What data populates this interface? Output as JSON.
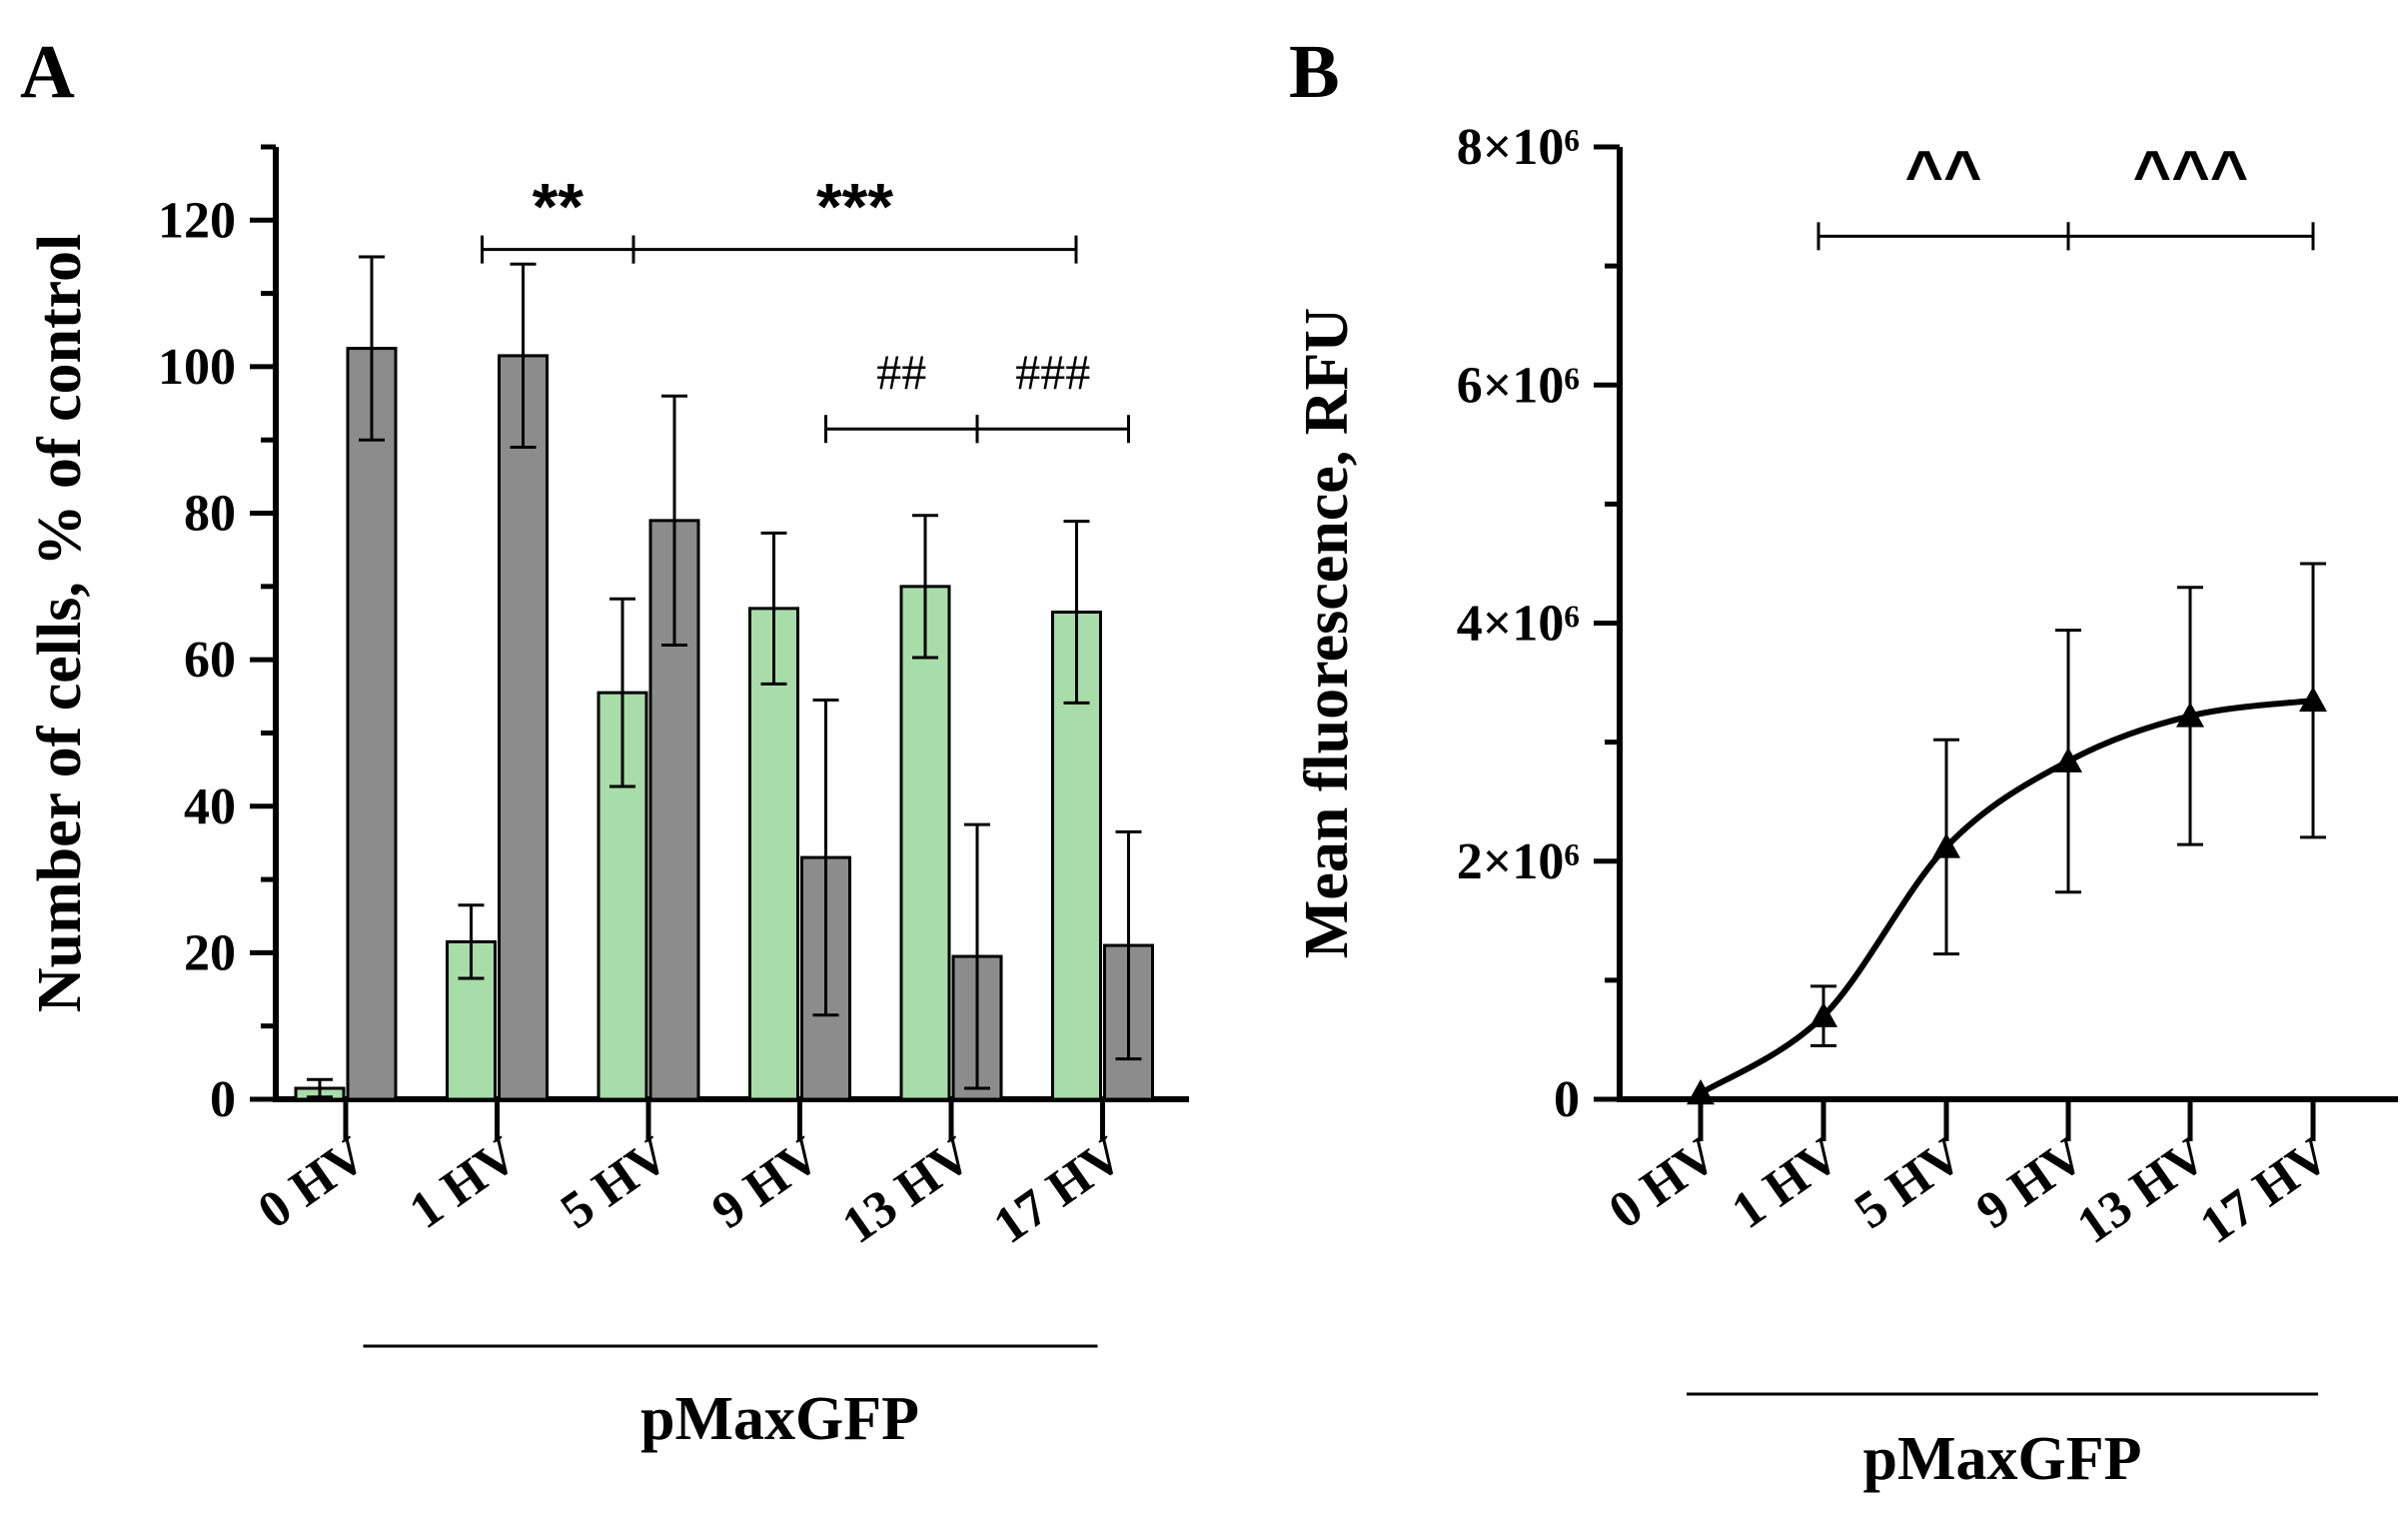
{
  "chart_data": [
    {
      "panel": "A",
      "type": "bar",
      "ylabel": "Number of cells, % of control",
      "ylim": [
        0,
        130
      ],
      "yticks": [
        0,
        20,
        40,
        60,
        80,
        100,
        120
      ],
      "categories": [
        "0 HV",
        "1 HV",
        "5 HV",
        "9 HV",
        "13 HV",
        "17 HV"
      ],
      "group_label": "pMaxGFP",
      "series": [
        {
          "color": "#a8dca8",
          "values": [
            1.5,
            21.5,
            55.5,
            67,
            70,
            66.5
          ],
          "errors": [
            1.2,
            5,
            12.8,
            10.3,
            9.7,
            12.4
          ]
        },
        {
          "color": "#8c8c8c",
          "values": [
            102.5,
            101.5,
            79,
            33,
            19.5,
            21
          ],
          "errors": [
            12.5,
            12.5,
            17,
            21.5,
            18,
            15.5
          ]
        }
      ],
      "annotations": [
        {
          "text": "**",
          "from": "1 HV",
          "to": "5 HV",
          "y": 116
        },
        {
          "text": "***",
          "from": "5 HV",
          "to": "13 HV",
          "y": 116
        },
        {
          "text": "##",
          "from": "9 HV",
          "to": "13 HV",
          "y": 91.5
        },
        {
          "text": "###",
          "from": "13 HV",
          "to": "17 HV",
          "y": 91.5
        }
      ]
    },
    {
      "panel": "B",
      "type": "line",
      "ylabel": "Mean fluorescence, RFU",
      "ylim": [
        0,
        8000000
      ],
      "yticks": [
        0,
        2000000,
        4000000,
        6000000,
        8000000
      ],
      "ytick_labels": [
        "0",
        "2×10⁶",
        "4×10⁶",
        "6×10⁶",
        "8×10⁶"
      ],
      "categories": [
        "0 HV",
        "1 HV",
        "5 HV",
        "9 HV",
        "13 HV",
        "17 HV"
      ],
      "group_label": "pMaxGFP",
      "values": [
        50000,
        700000,
        2120000,
        2840000,
        3220000,
        3350000
      ],
      "errors": [
        0,
        250000,
        900000,
        1100000,
        1080000,
        1150000
      ],
      "annotations": [
        {
          "text": "^^",
          "from": "1 HV",
          "to": "9 HV",
          "y": 7250000
        },
        {
          "text": "^^^",
          "from": "9 HV",
          "to": "17 HV",
          "y": 7250000
        }
      ]
    }
  ]
}
